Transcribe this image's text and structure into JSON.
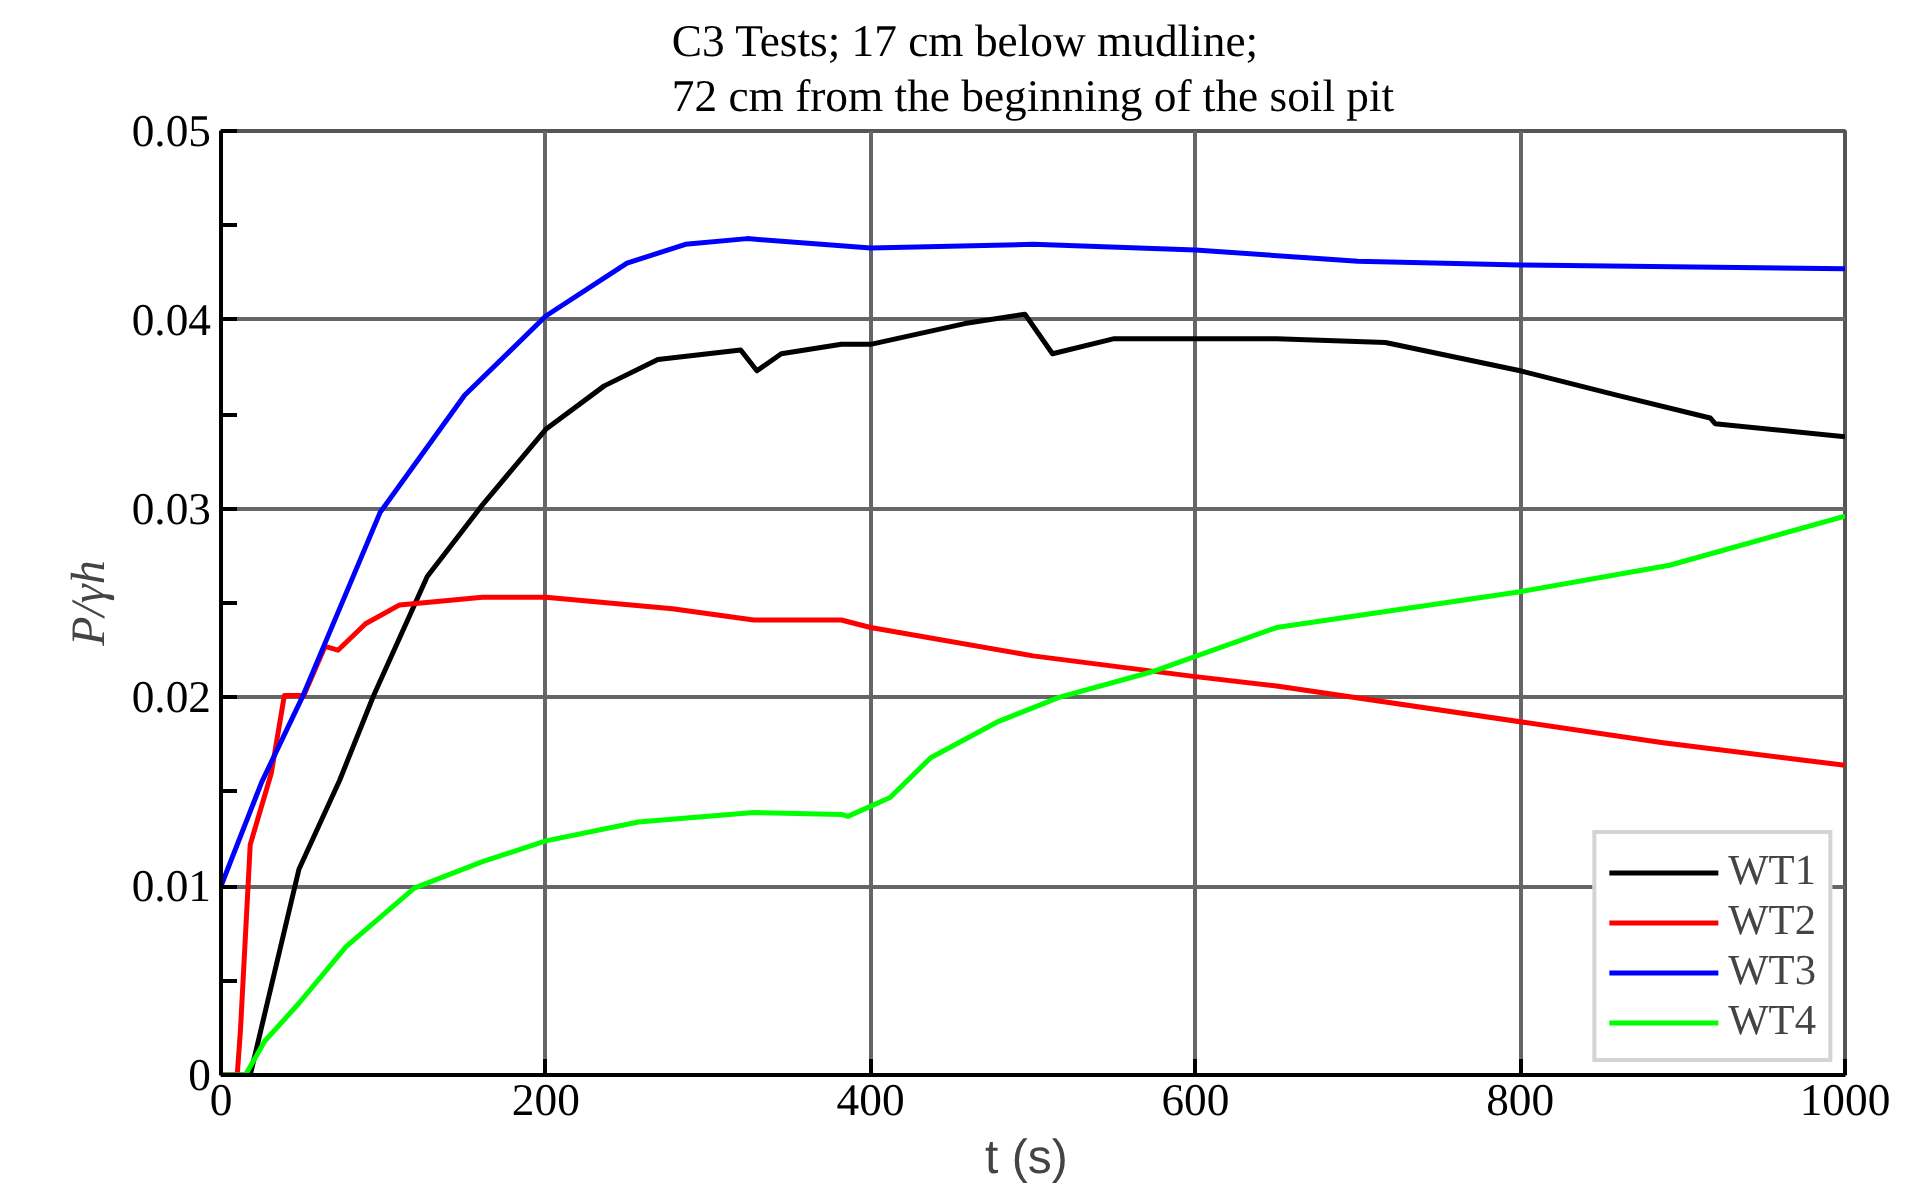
{
  "chart_data": {
    "type": "line",
    "title": "C3 Tests; 17 cm below mudline;\n72 cm from the beginning of the soil pit",
    "xlabel": "t  (s)",
    "ylabel": "P/γh",
    "xlim": [
      0,
      1000
    ],
    "ylim": [
      0,
      0.05
    ],
    "xticks": [
      0,
      200,
      400,
      600,
      800,
      1000
    ],
    "yticks": [
      0,
      {
        "value": 0.005,
        "label": null
      },
      0.01,
      {
        "value": 0.015,
        "label": null
      },
      0.02,
      {
        "value": 0.025,
        "label": null
      },
      0.03,
      {
        "value": 0.035,
        "label": null
      },
      0.04,
      {
        "value": 0.045,
        "label": null
      },
      0.05
    ],
    "grid": true,
    "legend": "bottom right",
    "line_style": "solid",
    "marker": "none",
    "series": [
      {
        "name": "WT1",
        "color": "#000000",
        "x": [
          0,
          18,
          48,
          73,
          94,
          127,
          161,
          200,
          236,
          269,
          320,
          330,
          345,
          382,
          400,
          458,
          495,
          512,
          550,
          600,
          650,
          717,
          800,
          860,
          917,
          920,
          1000
        ],
        "values": [
          0,
          0,
          0.0109,
          0.0156,
          0.0201,
          0.0264,
          0.0302,
          0.0342,
          0.0365,
          0.0379,
          0.0384,
          0.0373,
          0.0382,
          0.0387,
          0.0387,
          0.0398,
          0.0403,
          0.0382,
          0.039,
          0.039,
          0.039,
          0.0388,
          0.0373,
          0.036,
          0.0348,
          0.0345,
          0.0338
        ]
      },
      {
        "name": "WT2",
        "color": "#ff0000",
        "x": [
          0,
          10,
          12,
          18,
          31,
          39,
          51,
          64,
          72,
          89,
          110,
          161,
          200,
          278,
          328,
          382,
          400,
          500,
          600,
          650,
          888,
          1000
        ],
        "values": [
          0,
          0,
          0.0024,
          0.0122,
          0.016,
          0.0201,
          0.0201,
          0.0227,
          0.0225,
          0.0239,
          0.0249,
          0.0253,
          0.0253,
          0.0247,
          0.0241,
          0.0241,
          0.0237,
          0.0222,
          0.0211,
          0.0206,
          0.0176,
          0.0164
        ]
      },
      {
        "name": "WT3",
        "color": "#0000ff",
        "x": [
          0,
          25,
          50,
          98,
          150,
          200,
          250,
          286,
          324,
          400,
          500,
          600,
          700,
          800,
          1000
        ],
        "values": [
          0.01,
          0.0155,
          0.02,
          0.0298,
          0.036,
          0.0402,
          0.043,
          0.044,
          0.0443,
          0.0438,
          0.044,
          0.0437,
          0.0431,
          0.0429,
          0.0427
        ]
      },
      {
        "name": "WT4",
        "color": "#00ff00",
        "x": [
          0,
          15,
          27,
          48,
          77,
          119,
          161,
          200,
          257,
          328,
          382,
          386,
          412,
          437,
          478,
          516,
          575,
          650,
          800,
          892,
          1000
        ],
        "values": [
          0,
          0,
          0.0018,
          0.0038,
          0.0068,
          0.0099,
          0.0113,
          0.0124,
          0.0134,
          0.0139,
          0.0138,
          0.0137,
          0.0147,
          0.0168,
          0.0187,
          0.02,
          0.0214,
          0.0237,
          0.0256,
          0.027,
          0.0296
        ]
      }
    ]
  }
}
